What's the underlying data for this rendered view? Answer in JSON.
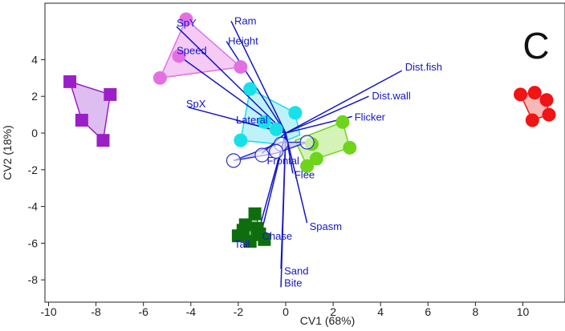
{
  "chart_data": {
    "type": "scatter",
    "panel_letter": "C",
    "xlabel": "CV1 (68%)",
    "ylabel": "CV2 (18%)",
    "xlim": [
      -10,
      12
    ],
    "ylim": [
      -9,
      6.3
    ],
    "xticks": [
      -10,
      -8,
      -6,
      -4,
      -2,
      0,
      2,
      4,
      6,
      8,
      10
    ],
    "yticks": [
      -8,
      -6,
      -4,
      -2,
      0,
      2,
      4
    ],
    "grid": false,
    "vector_color": "#1515c8",
    "series": [
      {
        "marker": "square",
        "color": "#9b1fc7",
        "fill": "#d3a8eb",
        "filled": true,
        "points": [
          [
            -9.1,
            2.8
          ],
          [
            -7.4,
            2.1
          ],
          [
            -8.6,
            0.7
          ],
          [
            -7.7,
            -0.4
          ]
        ],
        "hull": [
          [
            -9.1,
            2.8
          ],
          [
            -7.4,
            2.1
          ],
          [
            -7.7,
            -0.4
          ],
          [
            -8.6,
            0.7
          ]
        ]
      },
      {
        "marker": "circle",
        "color": "#e370e3",
        "fill": "#f2b8f2",
        "filled": true,
        "points": [
          [
            -4.2,
            6.2
          ],
          [
            -1.9,
            3.6
          ],
          [
            -4.5,
            4.2
          ],
          [
            -5.3,
            3.0
          ]
        ],
        "hull": [
          [
            -4.2,
            6.2
          ],
          [
            -1.9,
            3.6
          ],
          [
            -5.3,
            3.0
          ]
        ]
      },
      {
        "marker": "circle",
        "color": "#18e0e8",
        "fill": "#a8eef5",
        "filled": true,
        "points": [
          [
            -1.5,
            2.4
          ],
          [
            0.4,
            1.1
          ],
          [
            -1.9,
            -0.4
          ],
          [
            -0.4,
            0.2
          ],
          [
            -0.9,
            0.6
          ]
        ],
        "hull": [
          [
            -1.5,
            2.4
          ],
          [
            0.4,
            1.1
          ],
          [
            0.6,
            -0.1
          ],
          [
            -0.3,
            -0.6
          ],
          [
            -1.9,
            -0.4
          ]
        ]
      },
      {
        "marker": "circle",
        "color": "#6fd41c",
        "fill": "#c5ef9d",
        "filled": true,
        "points": [
          [
            2.4,
            0.6
          ],
          [
            2.7,
            -0.8
          ],
          [
            1.3,
            -1.4
          ],
          [
            0.9,
            -1.8
          ],
          [
            1.1,
            -0.6
          ]
        ],
        "hull": [
          [
            2.4,
            0.6
          ],
          [
            2.7,
            -0.8
          ],
          [
            1.3,
            -1.4
          ],
          [
            0.9,
            -1.8
          ],
          [
            0.4,
            -0.4
          ]
        ]
      },
      {
        "marker": "circle",
        "color": "#2a2fd0",
        "fill": "#c8c8f0",
        "filled": false,
        "points": [
          [
            -2.2,
            -1.5
          ],
          [
            -1.0,
            -1.2
          ],
          [
            -0.2,
            -0.6
          ],
          [
            0.9,
            -0.5
          ],
          [
            -0.4,
            -1.0
          ]
        ],
        "hull": [
          [
            -2.2,
            -1.5
          ],
          [
            -0.2,
            -0.5
          ],
          [
            0.9,
            -0.5
          ],
          [
            -0.4,
            -1.1
          ]
        ]
      },
      {
        "marker": "square",
        "color": "#0e6e0e",
        "fill": "#6bb06b",
        "filled": true,
        "points": [
          [
            -1.3,
            -4.4
          ],
          [
            -1.7,
            -5.0
          ],
          [
            -1.2,
            -5.2
          ],
          [
            -2.0,
            -5.6
          ],
          [
            -1.5,
            -5.9
          ],
          [
            -0.9,
            -5.8
          ],
          [
            -1.1,
            -5.5
          ],
          [
            -1.8,
            -5.3
          ]
        ],
        "hull": [
          [
            -1.3,
            -4.4
          ],
          [
            -0.9,
            -5.8
          ],
          [
            -1.5,
            -5.9
          ],
          [
            -2.0,
            -5.6
          ],
          [
            -1.7,
            -5.0
          ]
        ]
      },
      {
        "marker": "circle",
        "color": "#f01414",
        "fill": "#f6a0a0",
        "filled": true,
        "points": [
          [
            9.9,
            2.1
          ],
          [
            10.5,
            2.2
          ],
          [
            11.0,
            1.8
          ],
          [
            11.1,
            1.0
          ],
          [
            10.4,
            0.7
          ]
        ],
        "hull": [
          [
            9.9,
            2.1
          ],
          [
            10.5,
            2.2
          ],
          [
            11.0,
            1.8
          ],
          [
            11.1,
            1.0
          ],
          [
            10.4,
            0.7
          ]
        ]
      }
    ],
    "vectors": [
      {
        "label": "Ram",
        "x": -2.3,
        "y": 6.1,
        "anchor": "start",
        "dx": 4,
        "dy": 4
      },
      {
        "label": "SpY",
        "x": -4.6,
        "y": 5.8,
        "anchor": "start",
        "dx": 0,
        "dy": 0
      },
      {
        "label": "Height",
        "x": -2.5,
        "y": 5.0,
        "anchor": "start",
        "dx": 2,
        "dy": 4
      },
      {
        "label": "Speed",
        "x": -4.6,
        "y": 4.3,
        "anchor": "start",
        "dx": 0,
        "dy": 0
      },
      {
        "label": "Dist.fish",
        "x": 4.9,
        "y": 3.4,
        "anchor": "start",
        "dx": 4,
        "dy": 0
      },
      {
        "label": "Dist.wall",
        "x": 3.5,
        "y": 2.0,
        "anchor": "start",
        "dx": 4,
        "dy": 4
      },
      {
        "label": "Flicker",
        "x": 2.8,
        "y": 0.9,
        "anchor": "start",
        "dx": 3,
        "dy": 5
      },
      {
        "label": "SpX",
        "x": -4.1,
        "y": 1.4,
        "anchor": "start",
        "dx": -3,
        "dy": 0
      },
      {
        "label": "Lateral",
        "x": -2.1,
        "y": 0.7,
        "anchor": "start",
        "dx": 0,
        "dy": 4
      },
      {
        "label": "Frontal",
        "x": -1.0,
        "y": -1.1,
        "anchor": "start",
        "dx": 6,
        "dy": 14
      },
      {
        "label": "Flee",
        "x": 0.3,
        "y": -2.2,
        "anchor": "start",
        "dx": 2,
        "dy": 6
      },
      {
        "label": "Spasm",
        "x": 0.9,
        "y": -4.9,
        "anchor": "start",
        "dx": 3,
        "dy": 9
      },
      {
        "label": "Chase",
        "x": -1.2,
        "y": -5.6,
        "anchor": "start",
        "dx": 6,
        "dy": 5
      },
      {
        "label": "Tail",
        "x": -1.1,
        "y": -5.8,
        "anchor": "end",
        "dx": -12,
        "dy": 10
      },
      {
        "label": "Sand",
        "x": -0.2,
        "y": -7.4,
        "anchor": "start",
        "dx": 4,
        "dy": 7
      },
      {
        "label": "Bite",
        "x": -0.2,
        "y": -8.4,
        "anchor": "start",
        "dx": 4,
        "dy": -1
      }
    ]
  }
}
